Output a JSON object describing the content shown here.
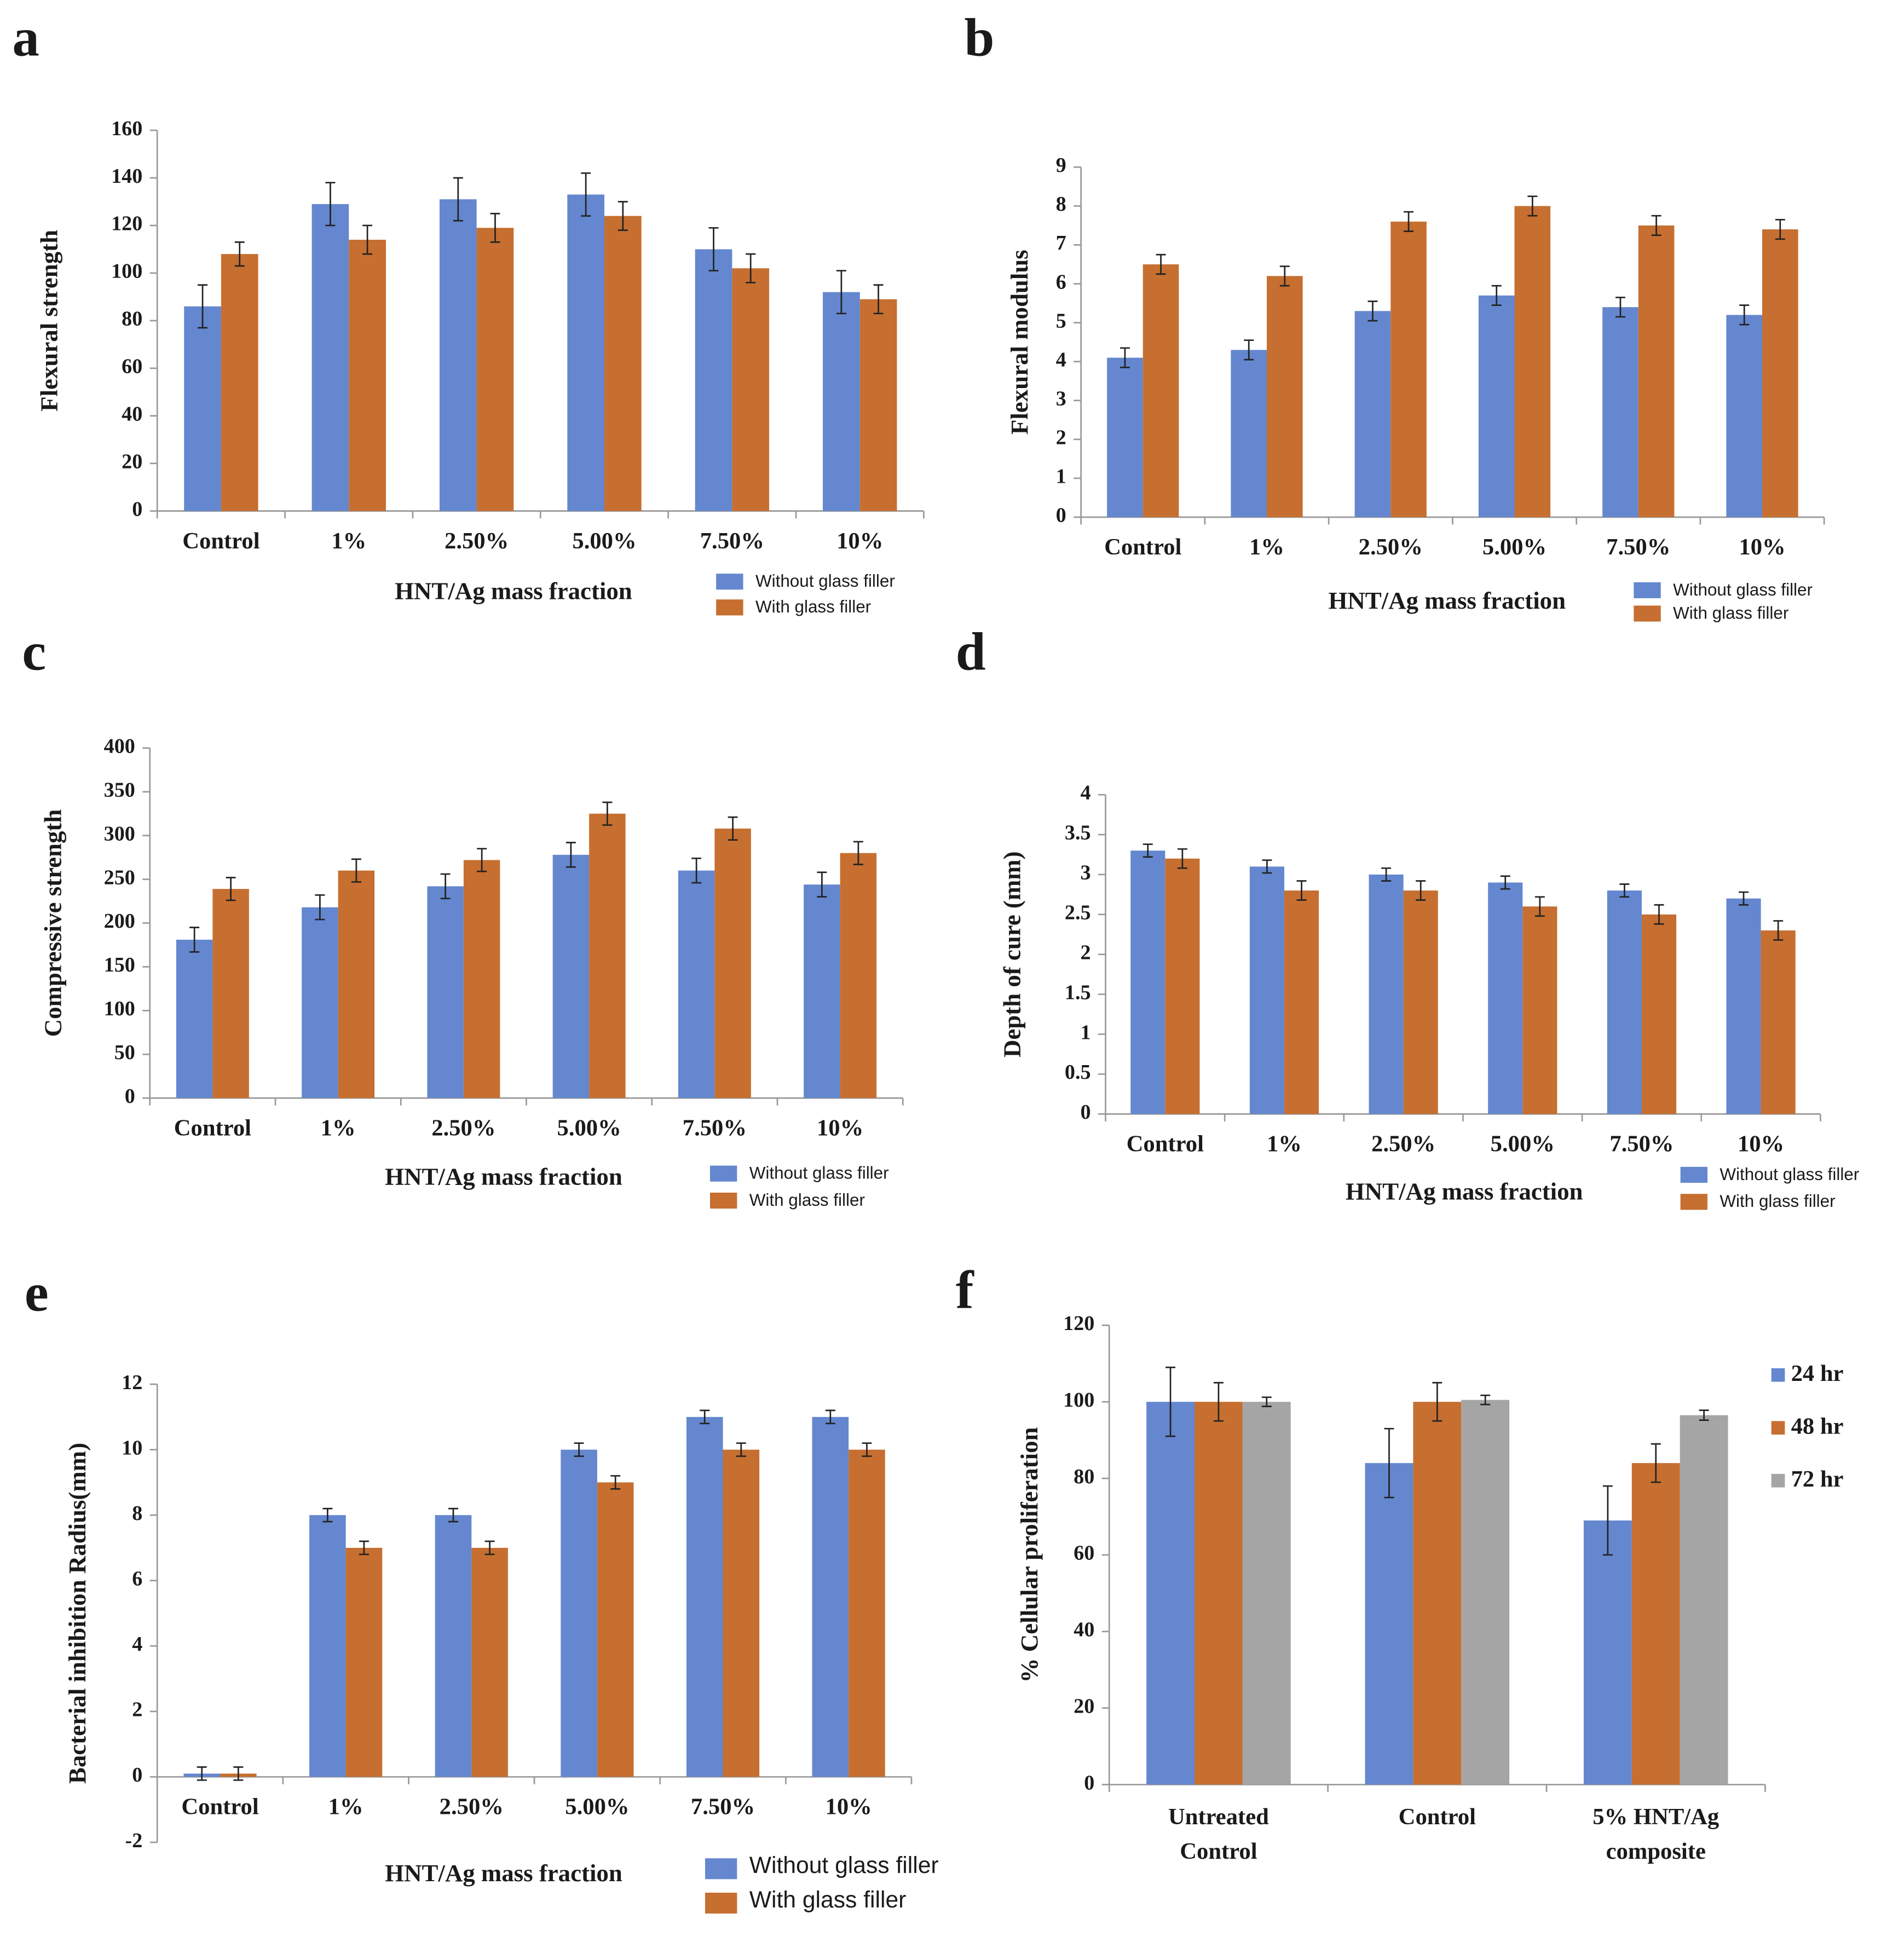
{
  "chart_data": [
    {
      "type": "bar",
      "panel": "a",
      "ylabel": "Flexural strength",
      "xlabel": "HNT/Ag  mass fraction",
      "categories": [
        "Control",
        "1%",
        "2.50%",
        "5.00%",
        "7.50%",
        "10%"
      ],
      "series": [
        {
          "name": "Without glass filler",
          "color": "#6487cf",
          "values": [
            86,
            129,
            131,
            133,
            110,
            92
          ],
          "errors": [
            9,
            9,
            9,
            9,
            9,
            9
          ]
        },
        {
          "name": "With glass filler",
          "color": "#c66f30",
          "values": [
            108,
            114,
            119,
            124,
            102,
            89
          ],
          "errors": [
            5,
            6,
            6,
            6,
            6,
            6
          ]
        }
      ],
      "ylim": [
        0,
        160
      ],
      "yticks": [
        0,
        20,
        40,
        60,
        80,
        100,
        120,
        140,
        160
      ]
    },
    {
      "type": "bar",
      "panel": "b",
      "ylabel": "Flexural modulus",
      "xlabel": "HNT/Ag  mass fraction",
      "categories": [
        "Control",
        "1%",
        "2.50%",
        "5.00%",
        "7.50%",
        "10%"
      ],
      "series": [
        {
          "name": "Without glass filler",
          "color": "#6487cf",
          "values": [
            4.1,
            4.3,
            5.3,
            5.7,
            5.4,
            5.2
          ],
          "errors": [
            0.25,
            0.25,
            0.25,
            0.25,
            0.25,
            0.25
          ]
        },
        {
          "name": "With glass filler",
          "color": "#c66f30",
          "values": [
            6.5,
            6.2,
            7.6,
            8.0,
            7.5,
            7.4
          ],
          "errors": [
            0.25,
            0.25,
            0.25,
            0.25,
            0.25,
            0.25
          ]
        }
      ],
      "ylim": [
        0,
        9
      ],
      "yticks": [
        0,
        1,
        2,
        3,
        4,
        5,
        6,
        7,
        8,
        9
      ]
    },
    {
      "type": "bar",
      "panel": "c",
      "ylabel": "Compressive strength",
      "xlabel": "HNT/Ag  mass fraction",
      "categories": [
        "Control",
        "1%",
        "2.50%",
        "5.00%",
        "7.50%",
        "10%"
      ],
      "series": [
        {
          "name": "Without glass filler",
          "color": "#6487cf",
          "values": [
            181,
            218,
            242,
            278,
            260,
            244
          ],
          "errors": [
            14,
            14,
            14,
            14,
            14,
            14
          ]
        },
        {
          "name": "With glass filler",
          "color": "#c66f30",
          "values": [
            239,
            260,
            272,
            325,
            308,
            280
          ],
          "errors": [
            13,
            13,
            13,
            13,
            13,
            13
          ]
        }
      ],
      "ylim": [
        0,
        400
      ],
      "yticks": [
        0,
        50,
        100,
        150,
        200,
        250,
        300,
        350,
        400
      ]
    },
    {
      "type": "bar",
      "panel": "d",
      "ylabel": "Depth of cure (mm)",
      "xlabel": "HNT/Ag  mass fraction",
      "categories": [
        "Control",
        "1%",
        "2.50%",
        "5.00%",
        "7.50%",
        "10%"
      ],
      "series": [
        {
          "name": "Without glass filler",
          "color": "#6487cf",
          "values": [
            3.3,
            3.1,
            3.0,
            2.9,
            2.8,
            2.7
          ],
          "errors": [
            0.08,
            0.08,
            0.08,
            0.08,
            0.08,
            0.08
          ]
        },
        {
          "name": "With glass filler",
          "color": "#c66f30",
          "values": [
            3.2,
            2.8,
            2.8,
            2.6,
            2.5,
            2.3
          ],
          "errors": [
            0.12,
            0.12,
            0.12,
            0.12,
            0.12,
            0.12
          ]
        }
      ],
      "ylim": [
        0,
        4
      ],
      "yticks": [
        0,
        0.5,
        1,
        1.5,
        2,
        2.5,
        3,
        3.5,
        4
      ]
    },
    {
      "type": "bar",
      "panel": "e",
      "ylabel": "Bacterial inhibition Radius(mm)",
      "xlabel": "HNT/Ag mass fraction",
      "categories": [
        "Control",
        "1%",
        "2.50%",
        "5.00%",
        "7.50%",
        "10%"
      ],
      "series": [
        {
          "name": "Without glass filler",
          "color": "#6487cf",
          "values": [
            0.1,
            8,
            8,
            10,
            11,
            11
          ],
          "errors": [
            0.2,
            0.2,
            0.2,
            0.2,
            0.2,
            0.2
          ]
        },
        {
          "name": "With glass filler",
          "color": "#c66f30",
          "values": [
            0.1,
            7,
            7,
            9,
            10,
            10
          ],
          "errors": [
            0.2,
            0.2,
            0.2,
            0.2,
            0.2,
            0.2
          ]
        }
      ],
      "ylim": [
        -2,
        12
      ],
      "yticks": [
        -2,
        0,
        2,
        4,
        6,
        8,
        10,
        12
      ]
    },
    {
      "type": "bar",
      "panel": "f",
      "ylabel": "% Cellular proliferation",
      "categories": [
        [
          "Untreated",
          "Control"
        ],
        [
          "Control"
        ],
        [
          "5% HNT/Ag",
          "composite"
        ]
      ],
      "series": [
        {
          "name": "24 hr",
          "color": "#6487cf",
          "values": [
            100,
            84,
            69
          ],
          "errors": [
            9,
            9,
            9
          ]
        },
        {
          "name": "48 hr",
          "color": "#c66f30",
          "values": [
            100,
            100,
            84
          ],
          "errors": [
            5,
            5,
            5
          ]
        },
        {
          "name": "72 hr",
          "color": "#a5a5a5",
          "values": [
            100,
            100.5,
            96.5
          ],
          "errors": [
            1.2,
            1.2,
            1.3
          ]
        }
      ],
      "ylim": [
        0,
        120
      ],
      "yticks": [
        0,
        20,
        40,
        60,
        80,
        100,
        120
      ]
    }
  ]
}
